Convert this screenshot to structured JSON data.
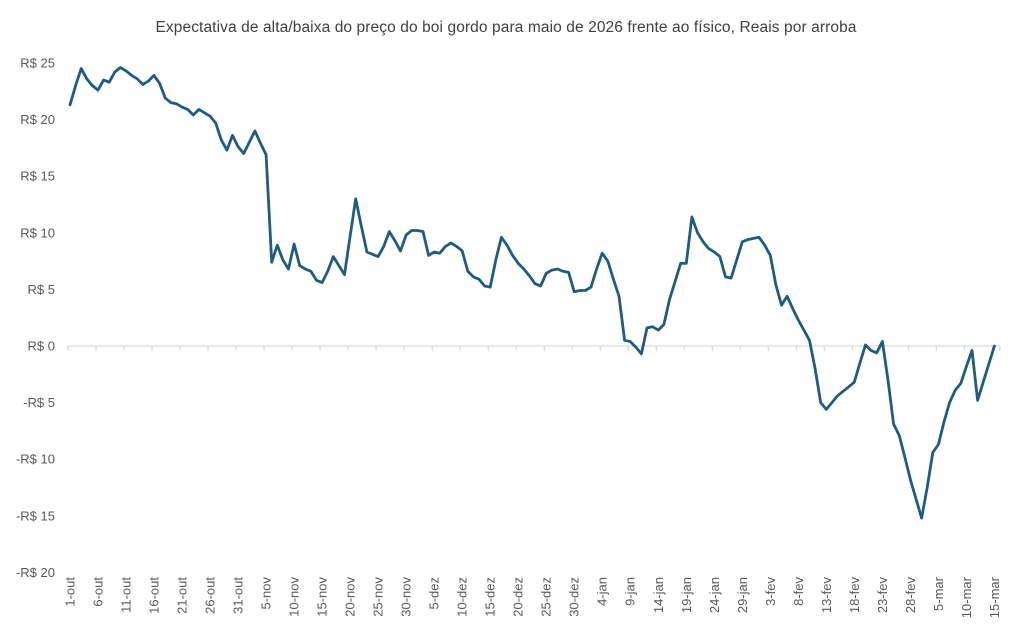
{
  "chart_data": {
    "type": "line",
    "title": "Expectativa de alta/baixa do preço do boi gordo para maio de 2026 frente ao físico, Reais por arroba",
    "legend": "none",
    "grid": "zero-line-only",
    "ylim": [
      -20,
      25
    ],
    "y_ticks": [
      {
        "label": "R$ 25",
        "value": 25
      },
      {
        "label": "R$ 20",
        "value": 20
      },
      {
        "label": "R$ 15",
        "value": 15
      },
      {
        "label": "R$ 10",
        "value": 10
      },
      {
        "label": "R$ 5",
        "value": 5
      },
      {
        "label": "R$ 0",
        "value": 0
      },
      {
        "label": "-R$ 5",
        "value": -5
      },
      {
        "label": "-R$ 10",
        "value": -10
      },
      {
        "label": "-R$ 15",
        "value": -15
      },
      {
        "label": "-R$ 20",
        "value": -20
      }
    ],
    "x_tick_every": 5,
    "x_tick_labels": [
      "1-out",
      "6-out",
      "11-out",
      "16-out",
      "21-out",
      "26-out",
      "31-out",
      "5-nov",
      "10-nov",
      "15-nov",
      "20-nov",
      "25-nov",
      "30-nov",
      "5-dez",
      "10-dez",
      "15-dez",
      "20-dez",
      "25-dez",
      "30-dez",
      "4-jan",
      "9-jan",
      "14-jan",
      "19-jan",
      "24-jan",
      "29-jan",
      "3-fev",
      "8-fev",
      "13-fev",
      "18-fev",
      "23-fev",
      "28-fev",
      "5-mar",
      "10-mar",
      "15-mar"
    ],
    "x": [
      "1-out",
      "2-out",
      "3-out",
      "4-out",
      "5-out",
      "6-out",
      "7-out",
      "8-out",
      "9-out",
      "10-out",
      "11-out",
      "12-out",
      "13-out",
      "14-out",
      "15-out",
      "16-out",
      "17-out",
      "18-out",
      "19-out",
      "20-out",
      "21-out",
      "22-out",
      "23-out",
      "24-out",
      "25-out",
      "26-out",
      "27-out",
      "28-out",
      "29-out",
      "30-out",
      "31-out",
      "1-nov",
      "2-nov",
      "3-nov",
      "4-nov",
      "5-nov",
      "6-nov",
      "7-nov",
      "8-nov",
      "9-nov",
      "10-nov",
      "11-nov",
      "12-nov",
      "13-nov",
      "14-nov",
      "15-nov",
      "16-nov",
      "17-nov",
      "18-nov",
      "19-nov",
      "20-nov",
      "21-nov",
      "22-nov",
      "23-nov",
      "24-nov",
      "25-nov",
      "26-nov",
      "27-nov",
      "28-nov",
      "29-nov",
      "30-nov",
      "1-dez",
      "2-dez",
      "3-dez",
      "4-dez",
      "5-dez",
      "6-dez",
      "7-dez",
      "8-dez",
      "9-dez",
      "10-dez",
      "11-dez",
      "12-dez",
      "13-dez",
      "14-dez",
      "15-dez",
      "16-dez",
      "17-dez",
      "18-dez",
      "19-dez",
      "20-dez",
      "21-dez",
      "22-dez",
      "23-dez",
      "24-dez",
      "25-dez",
      "26-dez",
      "27-dez",
      "28-dez",
      "29-dez",
      "30-dez",
      "31-dez",
      "1-jan",
      "2-jan",
      "3-jan",
      "4-jan",
      "5-jan",
      "6-jan",
      "7-jan",
      "8-jan",
      "9-jan",
      "10-jan",
      "11-jan",
      "12-jan",
      "13-jan",
      "14-jan",
      "15-jan",
      "16-jan",
      "17-jan",
      "18-jan",
      "19-jan",
      "20-jan",
      "21-jan",
      "22-jan",
      "23-jan",
      "24-jan",
      "25-jan",
      "26-jan",
      "27-jan",
      "28-jan",
      "29-jan",
      "30-jan",
      "31-jan",
      "1-fev",
      "2-fev",
      "3-fev",
      "4-fev",
      "5-fev",
      "6-fev",
      "7-fev",
      "8-fev",
      "9-fev",
      "10-fev",
      "11-fev",
      "12-fev",
      "13-fev",
      "14-fev",
      "15-fev",
      "16-fev",
      "17-fev",
      "18-fev",
      "19-fev",
      "20-fev",
      "21-fev",
      "22-fev",
      "23-fev",
      "24-fev",
      "25-fev",
      "26-fev",
      "27-fev",
      "28-fev",
      "1-mar",
      "2-mar",
      "3-mar",
      "4-mar",
      "5-mar",
      "6-mar",
      "7-mar",
      "8-mar",
      "9-mar",
      "10-mar",
      "11-mar",
      "12-mar",
      "13-mar",
      "14-mar",
      "15-mar"
    ],
    "values": [
      21.3,
      23.0,
      24.5,
      23.6,
      23.0,
      22.6,
      23.5,
      23.3,
      24.2,
      24.6,
      24.3,
      23.9,
      23.6,
      23.1,
      23.4,
      23.9,
      23.2,
      21.9,
      21.5,
      21.4,
      21.1,
      20.9,
      20.4,
      20.9,
      20.6,
      20.3,
      19.7,
      18.2,
      17.3,
      18.6,
      17.6,
      17.0,
      18.0,
      19.0,
      17.9,
      16.9,
      7.4,
      8.9,
      7.6,
      6.8,
      9.0,
      7.1,
      6.8,
      6.6,
      5.8,
      5.6,
      6.6,
      7.9,
      7.1,
      6.3,
      9.7,
      13.0,
      10.6,
      8.3,
      8.1,
      7.9,
      8.8,
      10.1,
      9.3,
      8.4,
      9.8,
      10.2,
      10.2,
      10.1,
      8.0,
      8.3,
      8.2,
      8.8,
      9.1,
      8.8,
      8.4,
      6.6,
      6.1,
      5.9,
      5.3,
      5.2,
      7.6,
      9.6,
      8.9,
      8.0,
      7.3,
      6.8,
      6.2,
      5.5,
      5.3,
      6.4,
      6.7,
      6.8,
      6.6,
      6.5,
      4.8,
      4.9,
      4.9,
      5.2,
      6.8,
      8.2,
      7.5,
      5.9,
      4.4,
      0.5,
      0.4,
      -0.1,
      -0.7,
      1.6,
      1.7,
      1.4,
      1.9,
      4.1,
      5.7,
      7.3,
      7.3,
      11.4,
      10.0,
      9.2,
      8.6,
      8.3,
      7.9,
      6.1,
      6.0,
      7.6,
      9.2,
      9.4,
      9.5,
      9.6,
      8.9,
      8.0,
      5.4,
      3.6,
      4.4,
      3.3,
      2.3,
      1.4,
      0.5,
      -2.0,
      -5.0,
      -5.6,
      -5.0,
      -4.4,
      -4.0,
      -3.6,
      -3.2,
      -1.5,
      0.1,
      -0.4,
      -0.6,
      0.4,
      -3.0,
      -6.9,
      -7.9,
      -9.8,
      -11.8,
      -13.5,
      -15.2,
      -12.5,
      -9.4,
      -8.7,
      -6.7,
      -5.0,
      -3.9,
      -3.3,
      -1.8,
      -0.4,
      -4.8,
      -3.2,
      -1.6,
      0.0
    ],
    "colors": {
      "line": "#1f5c7f",
      "axis_line": "#d9d9d9",
      "title_text": "#404040",
      "tick_text": "#595959",
      "background": "#ffffff"
    }
  }
}
